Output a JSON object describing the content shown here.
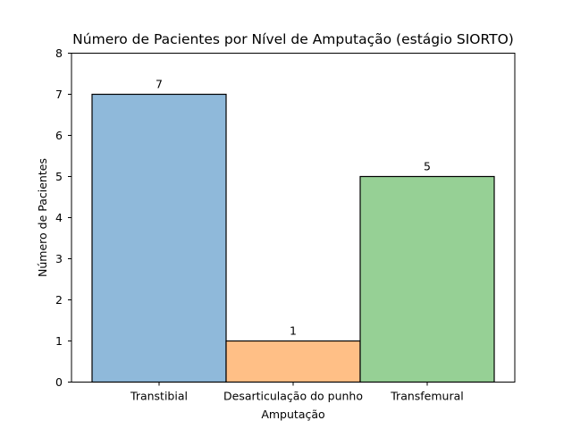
{
  "chart_data": {
    "type": "bar",
    "title": "Número de Pacientes por Nível de Amputação (estágio SIORTO)",
    "xlabel": "Amputação",
    "ylabel": "Número de Pacientes",
    "categories": [
      "Transtibial",
      "Desarticulação do punho",
      "Transfemural"
    ],
    "values": [
      7,
      1,
      5
    ],
    "data_labels": [
      "7",
      "1",
      "5"
    ],
    "colors": [
      "#8fb9da",
      "#ffbf86",
      "#96d095"
    ],
    "ylim": [
      0,
      8
    ],
    "yticks": [
      "0",
      "1",
      "2",
      "3",
      "4",
      "5",
      "6",
      "7",
      "8"
    ],
    "grid": false,
    "legend": "none"
  }
}
